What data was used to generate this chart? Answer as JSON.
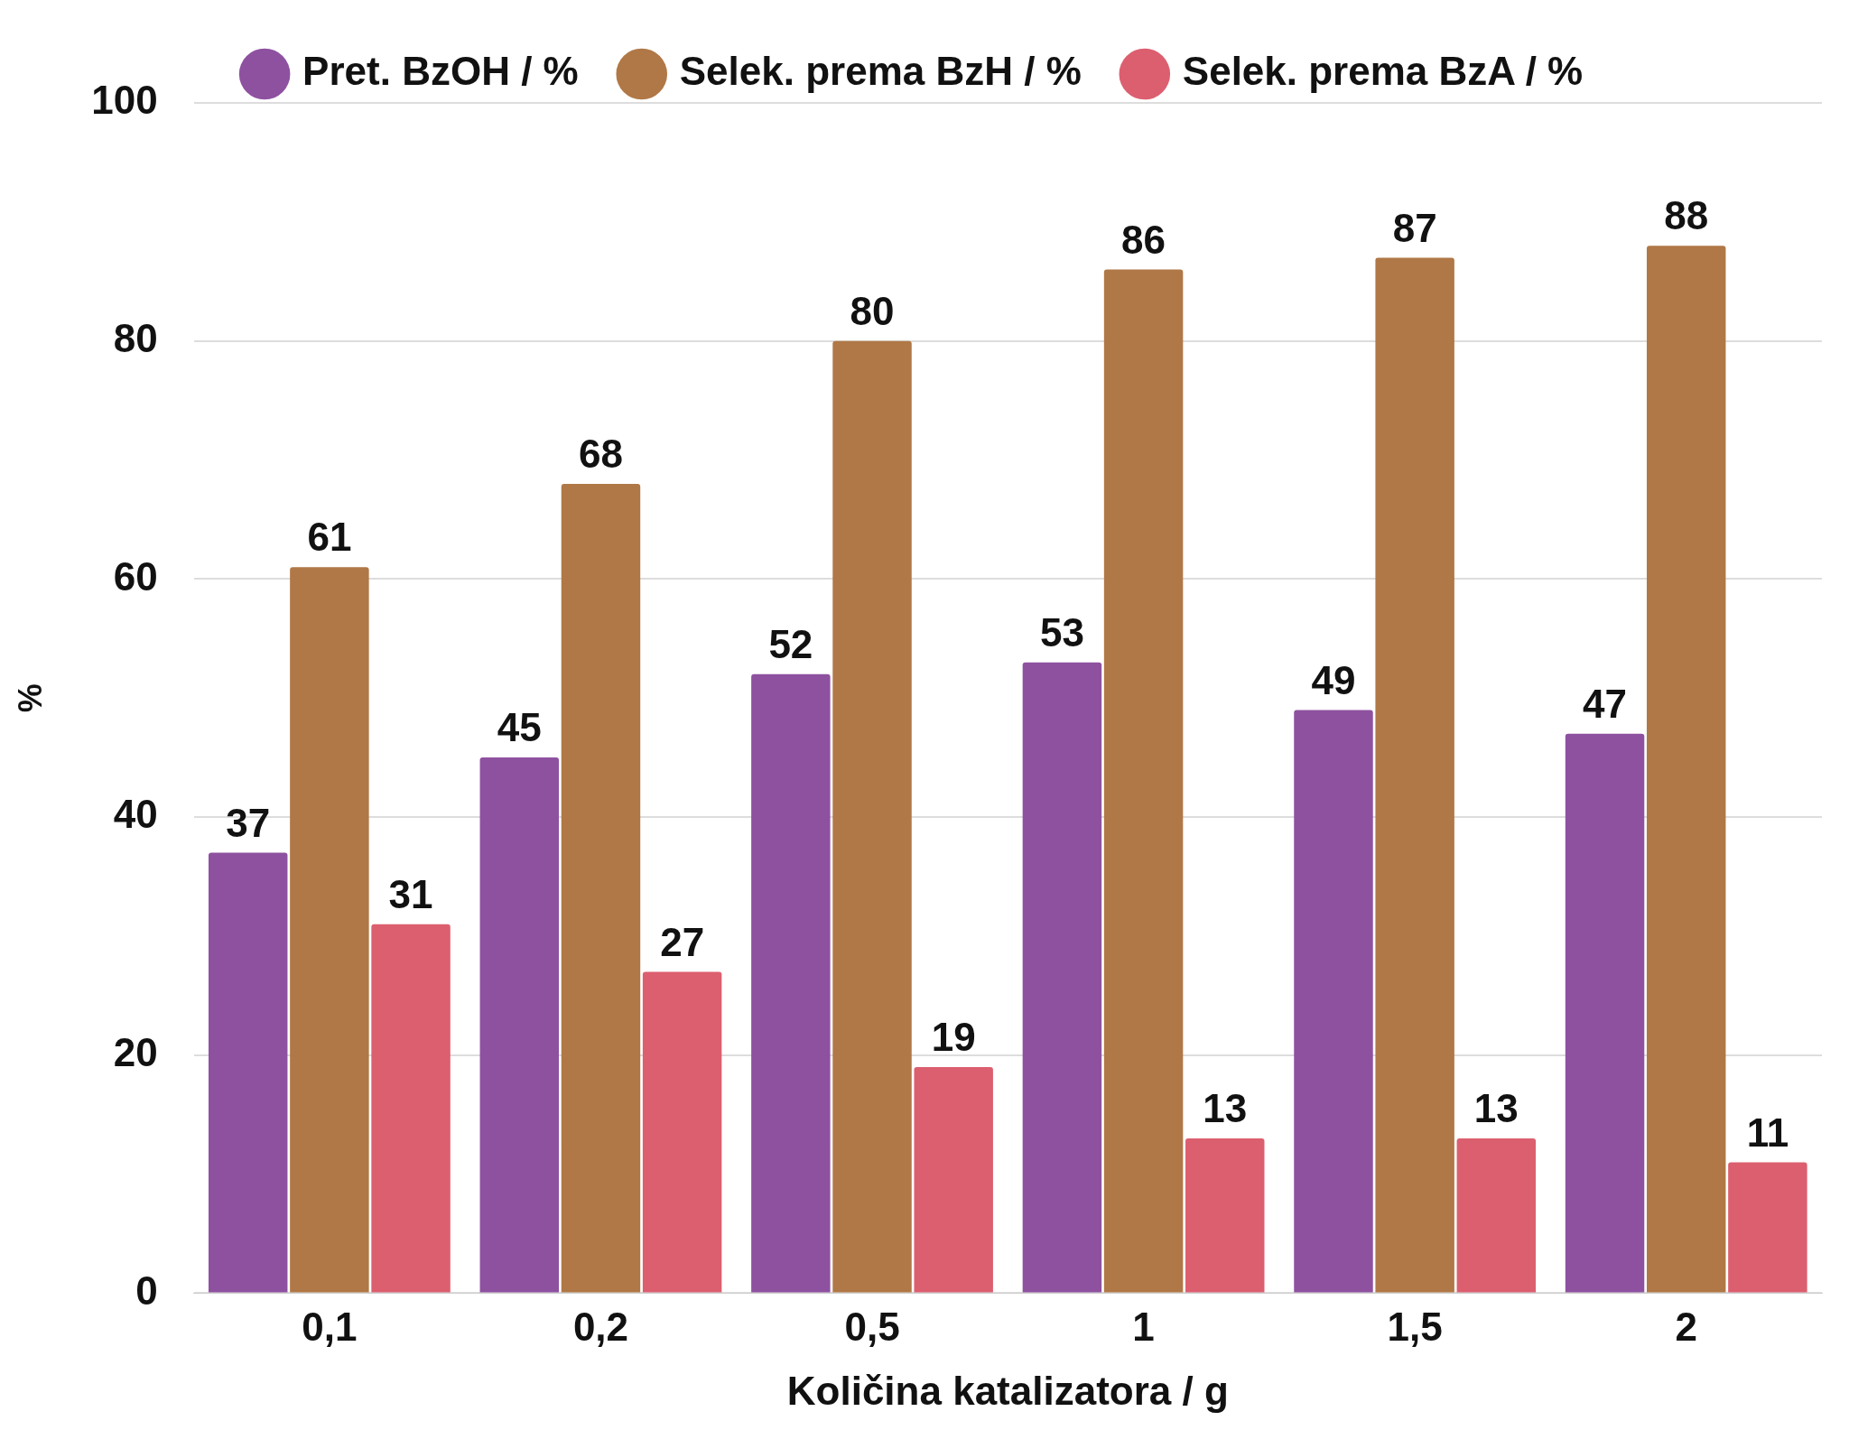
{
  "chart_data": {
    "type": "bar",
    "xlabel": "Količina katalizatora / g",
    "ylabel": "%",
    "categories": [
      "0,1",
      "0,2",
      "0,5",
      "1",
      "1,5",
      "2"
    ],
    "series": [
      {
        "name": "Pret. BzOH / %",
        "color": "#8e51a0",
        "values": [
          37,
          45,
          52,
          53,
          49,
          47
        ]
      },
      {
        "name": "Selek. prema BzH / %",
        "color": "#b07846",
        "values": [
          61,
          68,
          80,
          86,
          87,
          88
        ]
      },
      {
        "name": "Selek. prema BzA / %",
        "color": "#dc5f6f",
        "values": [
          31,
          27,
          19,
          13,
          13,
          11
        ]
      }
    ],
    "ylim": [
      0,
      100
    ],
    "yticks": [
      0,
      20,
      40,
      60,
      80,
      100
    ],
    "grid": "y",
    "legend": "top",
    "data_labels": true
  }
}
